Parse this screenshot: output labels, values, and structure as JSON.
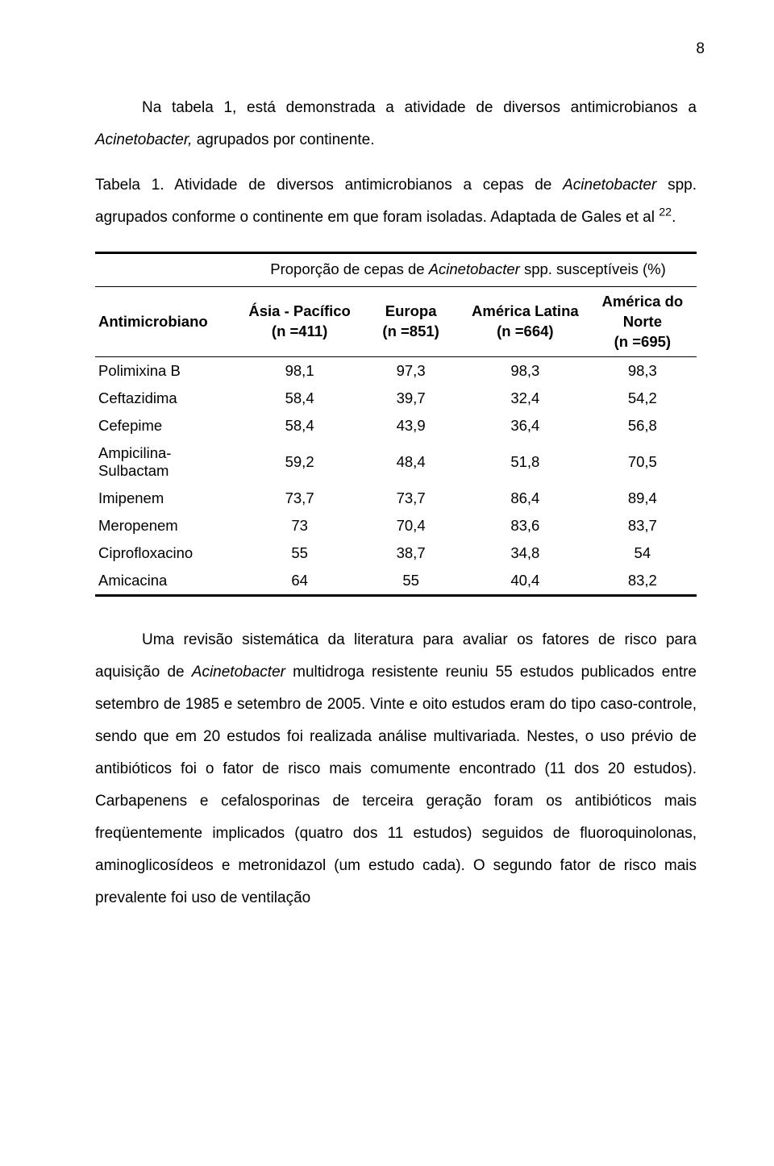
{
  "page_number": "8",
  "p1_a": "Na tabela 1, está demonstrada a atividade de diversos antimicrobianos a ",
  "p1_b": "Acinetobacter, ",
  "p1_c": "agrupados por continente.",
  "p2_a": "Tabela 1. Atividade de diversos antimicrobianos a cepas de ",
  "p2_b": "Acinetobacter ",
  "p2_c": "spp. agrupados conforme o continente em que foram isoladas. Adaptada de Gales et al ",
  "p2_sup": "22",
  "p2_d": ".",
  "table": {
    "caption_a": "Proporção de cepas de ",
    "caption_b": "Acinetobacter ",
    "caption_c": "spp. susceptíveis (%)",
    "col0": "Antimicrobiano",
    "col1_line1": "Ásia - Pacífico",
    "col1_line2": "(n =411)",
    "col2_line1": "Europa",
    "col2_line2": "(n =851)",
    "col3_line1": "América Latina",
    "col3_line2": "(n =664)",
    "col4_line1": "América do",
    "col4_line2": "Norte",
    "col4_line3": "(n =695)",
    "rows": [
      {
        "name": "Polimixina B",
        "c1": "98,1",
        "c2": "97,3",
        "c3": "98,3",
        "c4": "98,3"
      },
      {
        "name": "Ceftazidima",
        "c1": "58,4",
        "c2": "39,7",
        "c3": "32,4",
        "c4": "54,2"
      },
      {
        "name": "Cefepime",
        "c1": "58,4",
        "c2": "43,9",
        "c3": "36,4",
        "c4": "56,8"
      },
      {
        "name": "Ampicilina-\nSulbactam",
        "c1": "59,2",
        "c2": "48,4",
        "c3": "51,8",
        "c4": "70,5"
      },
      {
        "name": "Imipenem",
        "c1": "73,7",
        "c2": "73,7",
        "c3": "86,4",
        "c4": "89,4"
      },
      {
        "name": "Meropenem",
        "c1": "73",
        "c2": "70,4",
        "c3": "83,6",
        "c4": "83,7"
      },
      {
        "name": "Ciprofloxacino",
        "c1": "55",
        "c2": "38,7",
        "c3": "34,8",
        "c4": "54"
      },
      {
        "name": "Amicacina",
        "c1": "64",
        "c2": "55",
        "c3": "40,4",
        "c4": "83,2"
      }
    ]
  },
  "p3_a": "Uma revisão sistemática da literatura para avaliar os fatores de risco para aquisição de ",
  "p3_b": "Acinetobacter ",
  "p3_c": "multidroga resistente reuniu 55 estudos publicados entre setembro de 1985 e setembro de 2005. Vinte e oito estudos eram do tipo caso-controle, sendo que em 20 estudos foi realizada análise multivariada. Nestes, o uso prévio de antibióticos foi o fator de risco mais comumente encontrado (11 dos 20 estudos). Carbapenens e cefalosporinas de terceira geração foram os antibióticos mais freqüentemente implicados (quatro dos 11 estudos) seguidos de fluoroquinolonas, aminoglicosídeos e metronidazol (um estudo cada). O segundo fator de risco mais prevalente foi uso de ventilação"
}
